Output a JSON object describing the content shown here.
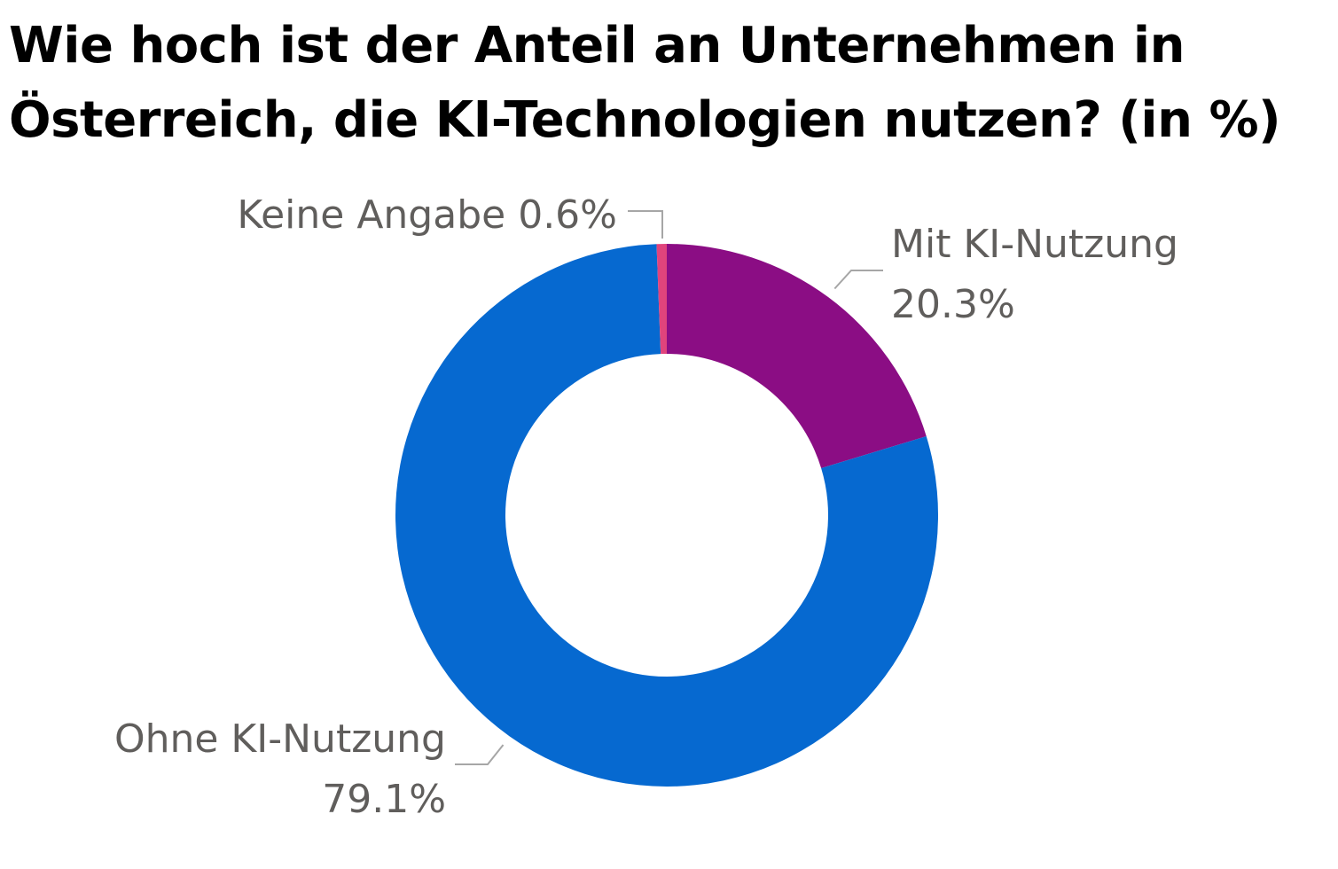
{
  "chart_data": {
    "type": "pie",
    "style": "donut",
    "title_lines": [
      "Wie hoch ist der Anteil an Unternehmen in",
      "Österreich, die KI-Technologien nutzen? (in %)"
    ],
    "unit": "%",
    "slices": [
      {
        "label": "Mit KI-Nutzung",
        "value": 20.3,
        "value_text": "20.3%",
        "color": "#8b0d84"
      },
      {
        "label": "Ohne KI-Nutzung",
        "value": 79.1,
        "value_text": "79.1%",
        "color": "#0669d0"
      },
      {
        "label": "Keine Angabe",
        "value": 0.6,
        "value_text": "0.6%",
        "color": "#e0447c"
      }
    ],
    "label_text_color": "#605e5c",
    "leader_line_color": "#a6a6a6"
  }
}
